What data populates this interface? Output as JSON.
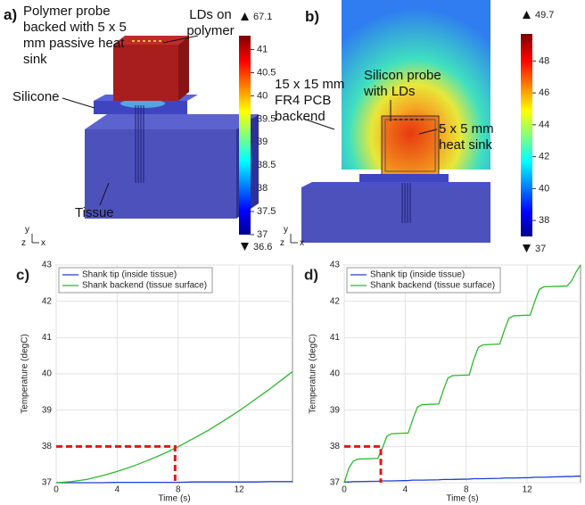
{
  "chart_data": [
    {
      "type": "render",
      "label": "a)",
      "annotations": [
        "Polymer probe backed with 5 x 5 mm passive heat sink",
        "LDs on polymer",
        "Silicone",
        "Tissue"
      ],
      "triad": [
        "y",
        "z",
        "x"
      ],
      "colorbar": {
        "lim": [
          37,
          41.3
        ],
        "ticks": [
          37,
          37.5,
          38,
          38.5,
          39,
          39.5,
          40,
          40.5,
          41
        ],
        "max": 67.1,
        "min": 36.6
      }
    },
    {
      "type": "render",
      "label": "b)",
      "annotations": [
        "15 x 15 mm FR4 PCB backend",
        "Silicon probe with LDs",
        "5 x 5 mm heat sink"
      ],
      "triad": [
        "y",
        "z",
        "x"
      ],
      "colorbar": {
        "lim": [
          37,
          49.7
        ],
        "ticks": [
          38,
          40,
          42,
          44,
          46,
          48
        ],
        "max": 49.7,
        "min": 37
      }
    },
    {
      "type": "line",
      "label": "c)",
      "xlabel": "Time (s)",
      "ylabel": "Temperature (degC)",
      "xlim": [
        0,
        15.5
      ],
      "ylim": [
        37,
        43
      ],
      "xticks": [
        0,
        4,
        8,
        12
      ],
      "yticks": [
        37,
        38,
        39,
        40,
        41,
        42,
        43
      ],
      "grid": true,
      "legend": "upper left",
      "x": [
        0,
        1,
        2,
        3,
        4,
        5,
        6,
        7,
        8,
        9,
        10,
        11,
        12,
        13,
        14,
        15,
        15.5
      ],
      "series": [
        {
          "name": "Shank tip (inside tissue)",
          "color": "#1f3fd6",
          "values": [
            37,
            37,
            37,
            37,
            37.01,
            37.01,
            37.01,
            37.01,
            37.01,
            37.02,
            37.02,
            37.02,
            37.02,
            37.02,
            37.03,
            37.03,
            37.03
          ]
        },
        {
          "name": "Shank backend (tissue surface)",
          "color": "#2eb82e",
          "values": [
            37,
            37.03,
            37.09,
            37.19,
            37.31,
            37.45,
            37.61,
            37.79,
            37.99,
            38.22,
            38.45,
            38.71,
            38.98,
            39.28,
            39.58,
            39.9,
            40.06
          ]
        }
      ],
      "marker": {
        "x": 7.8,
        "y": 38
      }
    },
    {
      "type": "line",
      "label": "d)",
      "xlabel": "Time (s)",
      "ylabel": "Temperature (degC)",
      "xlim": [
        0,
        15.5
      ],
      "ylim": [
        37,
        43
      ],
      "xticks": [
        0,
        4,
        8,
        12
      ],
      "yticks": [
        37,
        38,
        39,
        40,
        41,
        42,
        43
      ],
      "grid": true,
      "legend": "upper left",
      "x": [
        0,
        0.3,
        0.6,
        0.9,
        2.2,
        2.5,
        2.8,
        3.1,
        4.2,
        4.5,
        4.8,
        5.1,
        6.2,
        6.5,
        6.8,
        7.1,
        8.2,
        8.5,
        8.8,
        9.1,
        10.2,
        10.5,
        10.8,
        11.1,
        12.2,
        12.5,
        12.8,
        13.1,
        14.6,
        14.9,
        15.2,
        15.5
      ],
      "series": [
        {
          "name": "Shank tip (inside tissue)",
          "color": "#1f3fd6",
          "values": [
            37.02,
            37.02,
            37.03,
            37.03,
            37.04,
            37.05,
            37.05,
            37.05,
            37.06,
            37.07,
            37.07,
            37.07,
            37.08,
            37.09,
            37.09,
            37.09,
            37.1,
            37.11,
            37.11,
            37.11,
            37.12,
            37.13,
            37.13,
            37.13,
            37.14,
            37.15,
            37.15,
            37.15,
            37.17,
            37.17,
            37.18,
            37.18
          ]
        },
        {
          "name": "Shank backend (tissue surface)",
          "color": "#2eb82e",
          "values": [
            37,
            37.4,
            37.6,
            37.65,
            37.67,
            37.95,
            38.28,
            38.35,
            38.37,
            38.75,
            39.08,
            39.15,
            39.17,
            39.55,
            39.88,
            39.95,
            39.97,
            40.4,
            40.73,
            40.8,
            40.82,
            41.2,
            41.53,
            41.6,
            41.62,
            42,
            42.33,
            42.4,
            42.42,
            42.55,
            42.8,
            43
          ]
        }
      ],
      "marker": {
        "x": 2.4,
        "y": 38
      }
    }
  ]
}
